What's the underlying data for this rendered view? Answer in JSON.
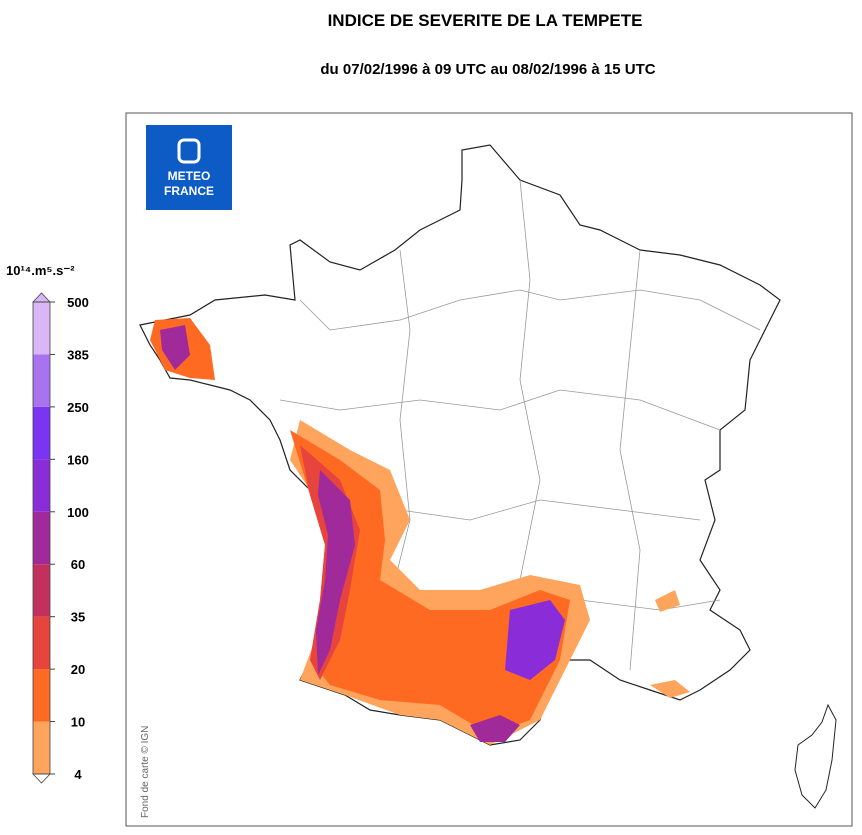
{
  "header": {
    "title": "INDICE DE SEVERITE DE LA TEMPETE",
    "subtitle": "du 07/02/1996 à 09 UTC au 08/02/1996 à 15 UTC"
  },
  "logo": {
    "line1": "METEO",
    "line2": "FRANCE"
  },
  "attribution": "Fond de carte © IGN",
  "colorbar": {
    "label": "10¹⁴.m⁵.s⁻²",
    "ticks": [
      4,
      10,
      20,
      35,
      60,
      100,
      160,
      250,
      385,
      500
    ],
    "colors": [
      "#ffa45c",
      "#ff6a22",
      "#e6443c",
      "#c2305e",
      "#a02a9a",
      "#8a2cd8",
      "#7a34f2",
      "#a873ee",
      "#d9b6f6"
    ]
  }
}
